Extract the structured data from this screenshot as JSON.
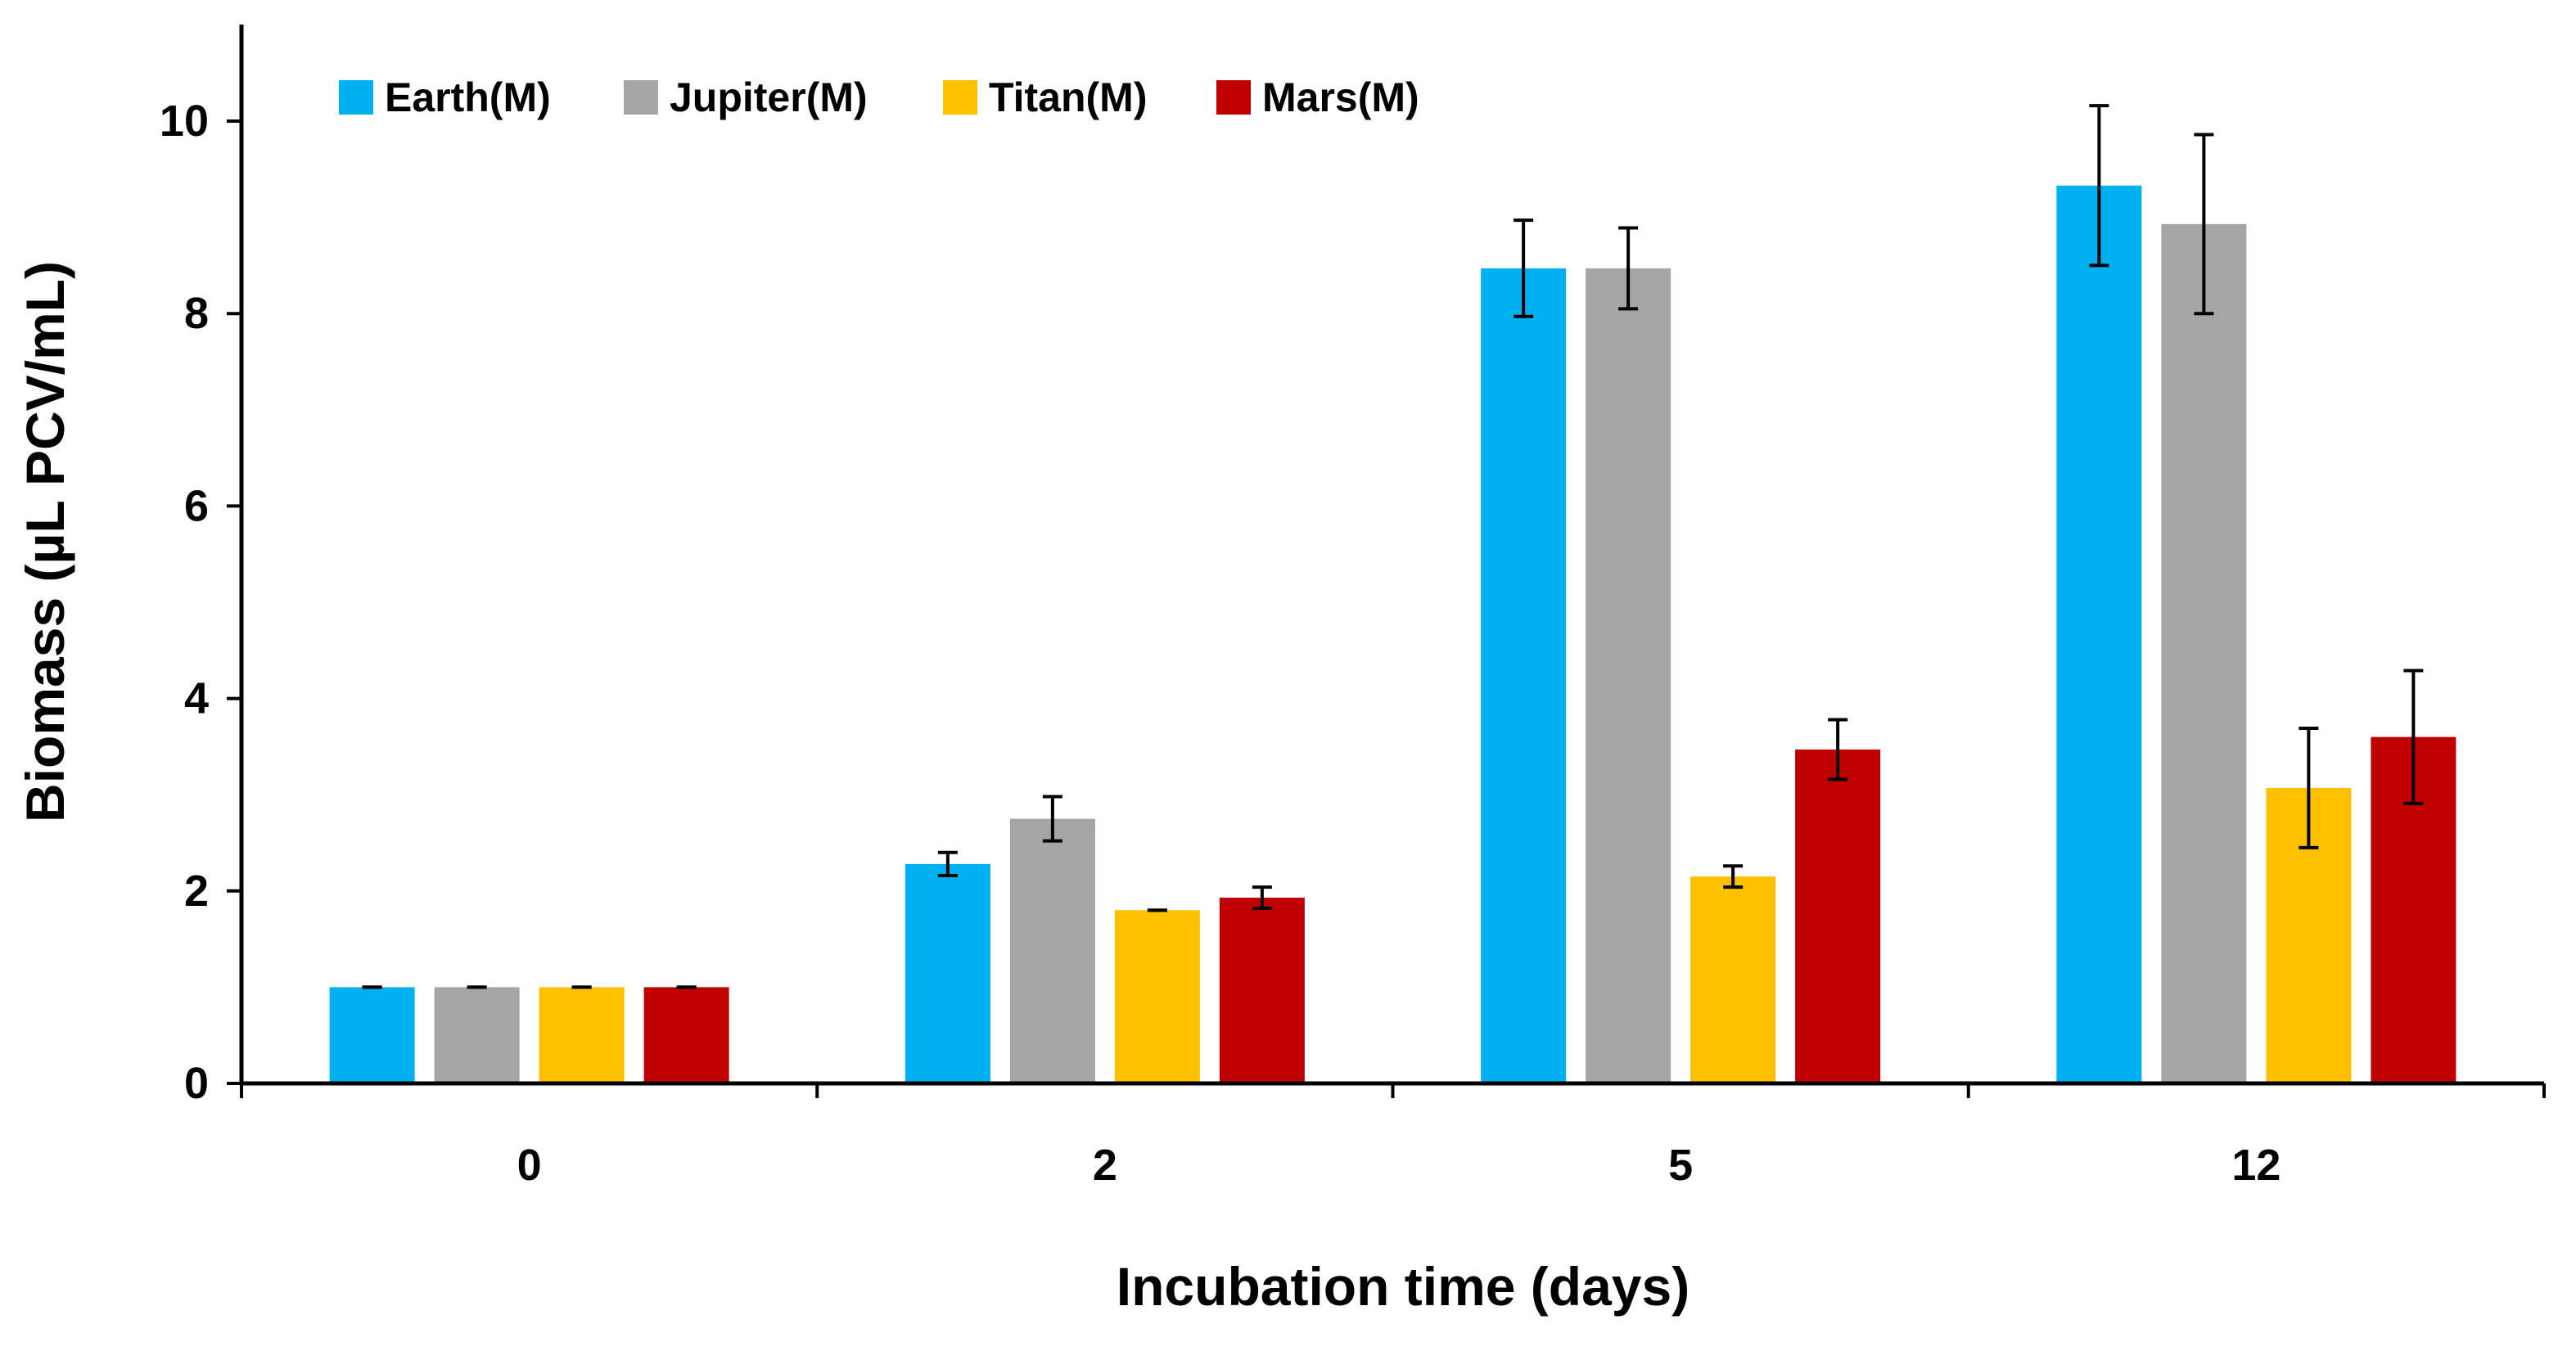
{
  "chart_data": {
    "type": "bar",
    "title": "",
    "xlabel": "Incubation time (days)",
    "ylabel": "Biomass  (µL PCV/mL)",
    "categories": [
      "0",
      "2",
      "5",
      "12"
    ],
    "ylim": [
      0,
      11
    ],
    "yticks": [
      "0",
      "2",
      "4",
      "6",
      "8",
      "10"
    ],
    "grid": false,
    "legend_position": "top-left",
    "series": [
      {
        "name": "Earth(M)",
        "color": "#00B0F0",
        "values": [
          1.0,
          2.28,
          8.47,
          9.33
        ],
        "errors": [
          0.0,
          0.12,
          0.5,
          0.83
        ]
      },
      {
        "name": "Jupiter(M)",
        "color": "#A5A5A5",
        "values": [
          1.0,
          2.75,
          8.47,
          8.93
        ],
        "errors": [
          0.0,
          0.23,
          0.42,
          0.93
        ]
      },
      {
        "name": "Titan(M)",
        "color": "#FFC000",
        "values": [
          1.0,
          1.8,
          2.15,
          3.07
        ],
        "errors": [
          0.0,
          0.0,
          0.11,
          0.62
        ]
      },
      {
        "name": "Mars(M)",
        "color": "#C00000",
        "values": [
          1.0,
          1.93,
          3.47,
          3.6
        ],
        "errors": [
          0.0,
          0.11,
          0.31,
          0.69
        ]
      }
    ]
  }
}
